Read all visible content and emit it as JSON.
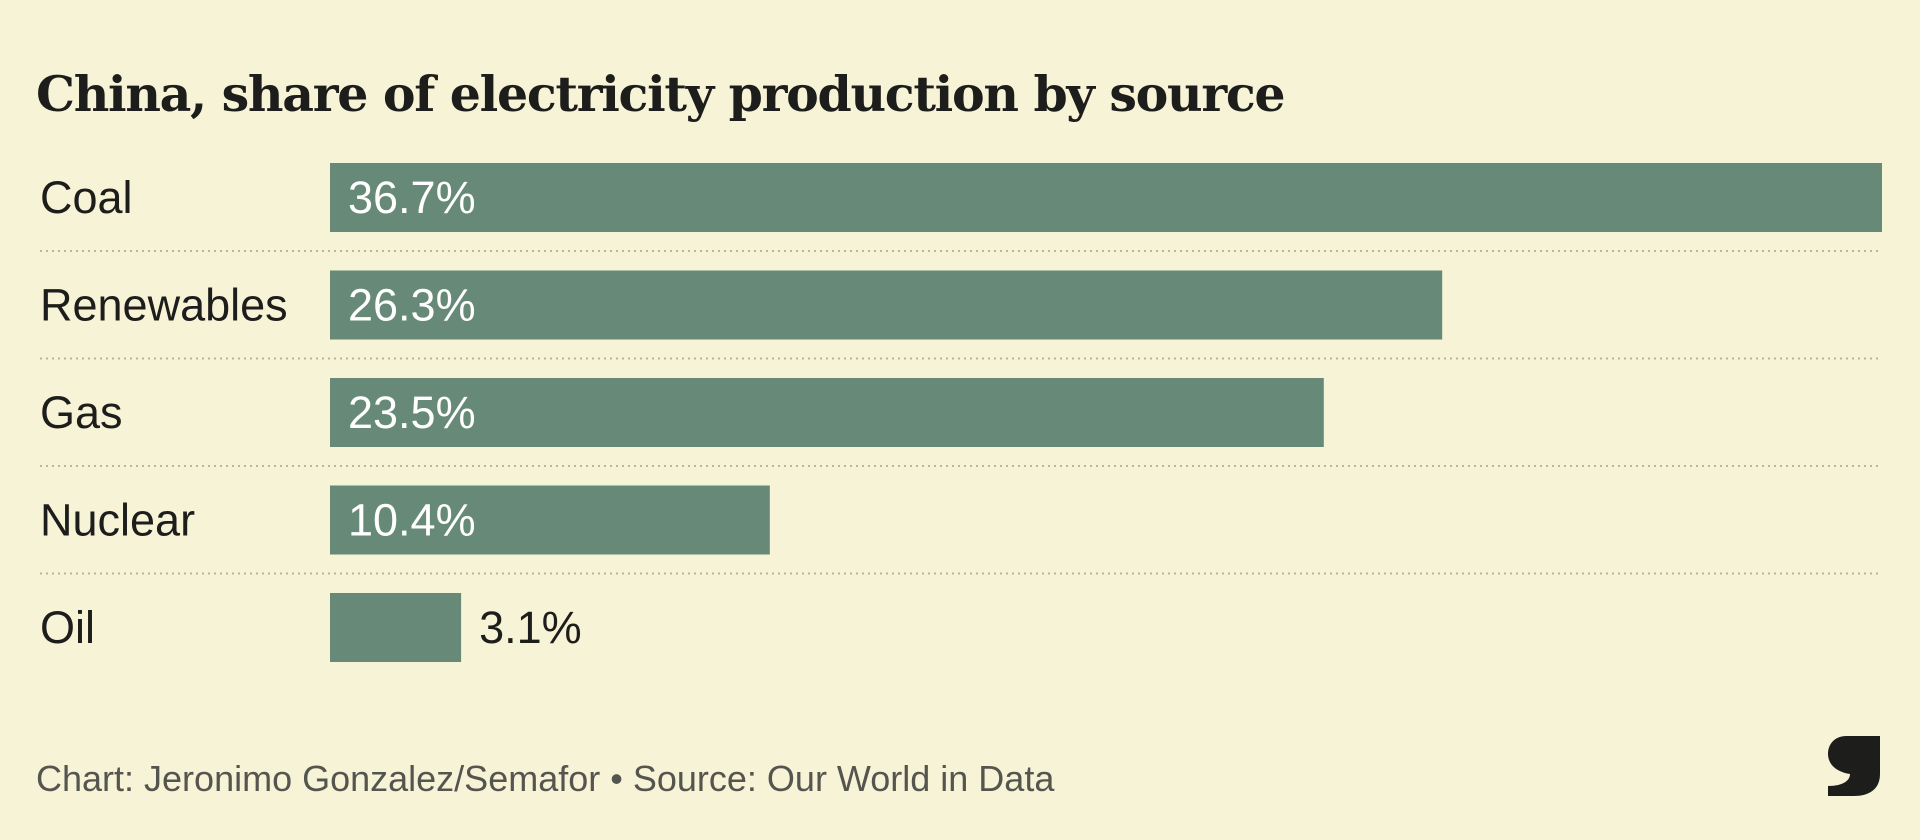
{
  "chart_data": {
    "type": "bar",
    "orientation": "horizontal",
    "title": "China, share of electricity production by source",
    "categories": [
      "Coal",
      "Renewables",
      "Gas",
      "Nuclear",
      "Oil"
    ],
    "values": [
      36.7,
      26.3,
      23.5,
      10.4,
      3.1
    ],
    "value_labels": [
      "36.7%",
      "26.3%",
      "23.5%",
      "10.4%",
      "3.1%"
    ],
    "unit": "%",
    "xlim": [
      0,
      36.7
    ],
    "grid": false,
    "legend": "none",
    "bar_color": "#668a77",
    "label_inside_color": "#ffffff",
    "label_outside_color": "#1d1d1b"
  },
  "footer": {
    "credit": "Chart: Jeronimo Gonzalez/Semafor • Source: Our World in Data"
  },
  "logo": {
    "icon": "semafor-s-logo",
    "color": "#1d1d1b"
  }
}
